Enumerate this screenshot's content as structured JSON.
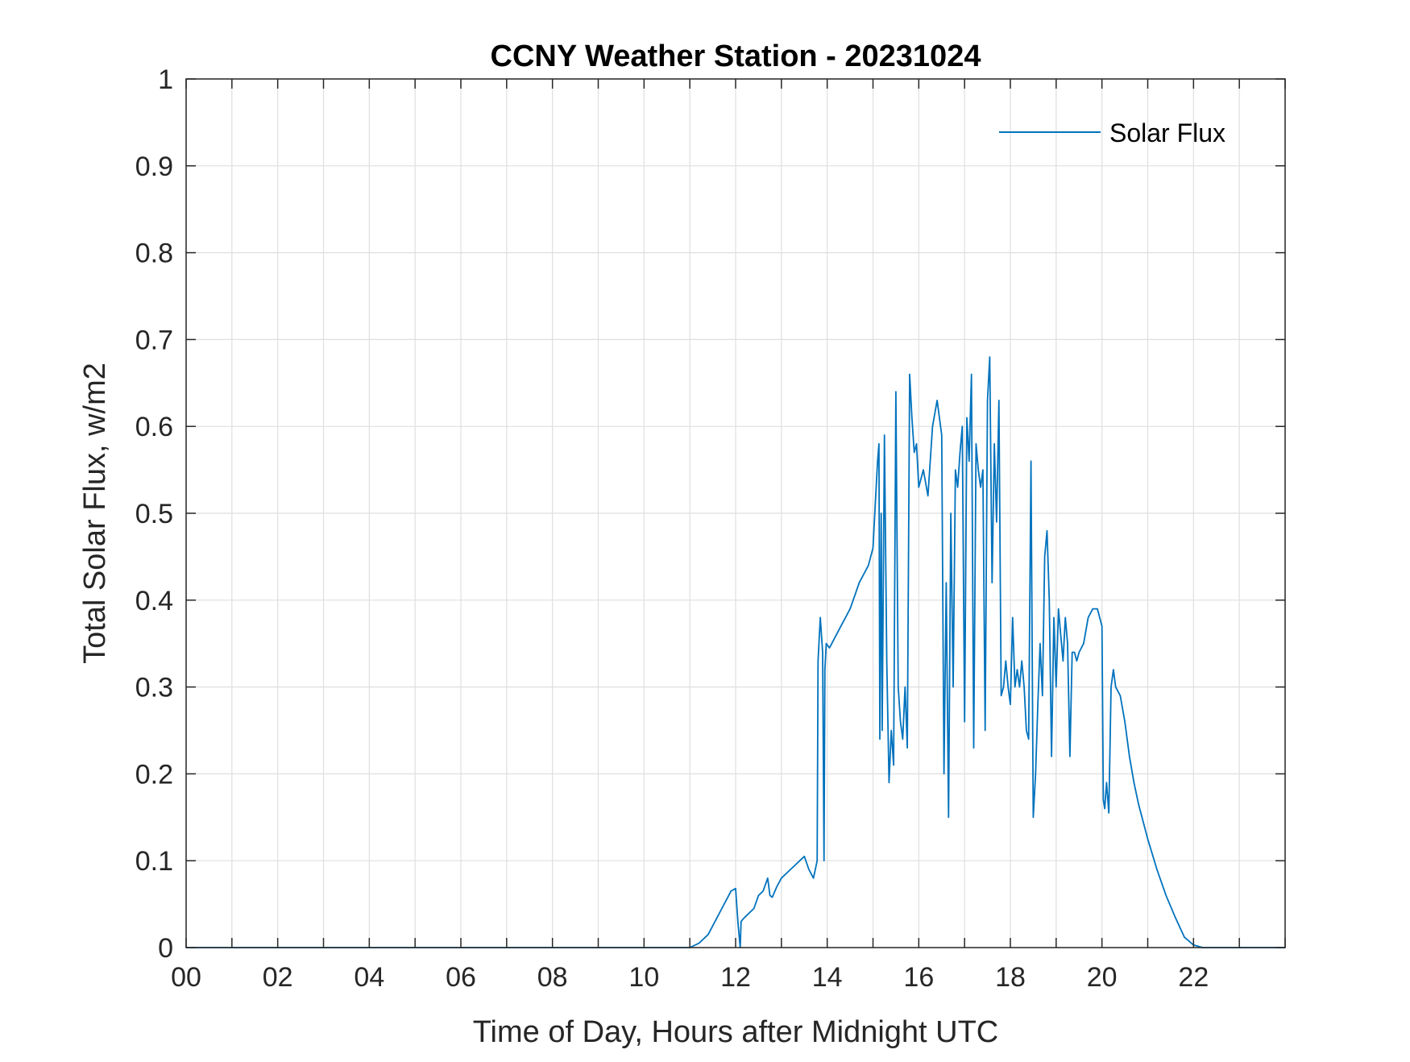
{
  "chart_data": {
    "type": "line",
    "title": "CCNY Weather Station - 20231024",
    "xlabel": "Time of Day, Hours after Midnight UTC",
    "ylabel": "Total Solar Flux, w/m2",
    "xlim": [
      0,
      24
    ],
    "ylim": [
      0,
      1
    ],
    "xticks": [
      0,
      2,
      4,
      6,
      8,
      10,
      12,
      14,
      16,
      18,
      20,
      22
    ],
    "xtick_labels": [
      "00",
      "02",
      "04",
      "06",
      "08",
      "10",
      "12",
      "14",
      "16",
      "18",
      "20",
      "22"
    ],
    "xgrid": [
      0,
      1,
      2,
      3,
      4,
      5,
      6,
      7,
      8,
      9,
      10,
      11,
      12,
      13,
      14,
      15,
      16,
      17,
      18,
      19,
      20,
      21,
      22,
      23,
      24
    ],
    "yticks": [
      0,
      0.1,
      0.2,
      0.3,
      0.4,
      0.5,
      0.6,
      0.7,
      0.8,
      0.9,
      1
    ],
    "ytick_labels": [
      "0",
      "0.1",
      "0.2",
      "0.3",
      "0.4",
      "0.5",
      "0.6",
      "0.7",
      "0.8",
      "0.9",
      "1"
    ],
    "grid": true,
    "legend_position": "top-right",
    "colors": {
      "series": "#0072BD",
      "axis": "#262626",
      "grid": "#dfdfdf"
    },
    "series": [
      {
        "name": "Solar Flux",
        "x": [
          0,
          11.0,
          11.2,
          11.4,
          11.55,
          11.7,
          11.8,
          11.9,
          12.0,
          12.05,
          12.1,
          12.12,
          12.15,
          12.2,
          12.4,
          12.5,
          12.6,
          12.7,
          12.75,
          12.8,
          12.9,
          13.0,
          13.1,
          13.2,
          13.3,
          13.4,
          13.5,
          13.6,
          13.65,
          13.7,
          13.78,
          13.8,
          13.85,
          13.9,
          13.93,
          13.95,
          13.98,
          14.05,
          14.1,
          14.2,
          14.3,
          14.4,
          14.5,
          14.6,
          14.7,
          14.8,
          14.9,
          15.0,
          15.05,
          15.1,
          15.13,
          15.15,
          15.18,
          15.2,
          15.25,
          15.3,
          15.35,
          15.4,
          15.45,
          15.5,
          15.55,
          15.6,
          15.65,
          15.7,
          15.75,
          15.8,
          15.85,
          15.9,
          15.95,
          16.0,
          16.1,
          16.2,
          16.3,
          16.4,
          16.5,
          16.55,
          16.6,
          16.65,
          16.7,
          16.75,
          16.8,
          16.85,
          16.9,
          16.95,
          17.0,
          17.05,
          17.1,
          17.15,
          17.2,
          17.25,
          17.3,
          17.35,
          17.4,
          17.45,
          17.5,
          17.55,
          17.6,
          17.65,
          17.7,
          17.75,
          17.8,
          17.85,
          17.9,
          17.95,
          18.0,
          18.05,
          18.1,
          18.15,
          18.2,
          18.25,
          18.3,
          18.35,
          18.4,
          18.45,
          18.5,
          18.55,
          18.6,
          18.65,
          18.7,
          18.75,
          18.8,
          18.85,
          18.9,
          18.95,
          19.0,
          19.05,
          19.1,
          19.15,
          19.2,
          19.25,
          19.3,
          19.35,
          19.4,
          19.45,
          19.5,
          19.6,
          19.7,
          19.8,
          19.9,
          20.0,
          20.03,
          20.06,
          20.1,
          20.15,
          20.2,
          20.25,
          20.3,
          20.4,
          20.5,
          20.6,
          20.7,
          20.8,
          20.9,
          21.0,
          21.2,
          21.4,
          21.6,
          21.8,
          22.0,
          22.2,
          22.4,
          22.6,
          24.0
        ],
        "y": [
          0,
          0,
          0.005,
          0.015,
          0.03,
          0.045,
          0.055,
          0.065,
          0.068,
          0.03,
          0.0,
          0.03,
          0.032,
          0.035,
          0.045,
          0.06,
          0.065,
          0.08,
          0.06,
          0.058,
          0.07,
          0.08,
          0.085,
          0.09,
          0.095,
          0.1,
          0.105,
          0.09,
          0.085,
          0.08,
          0.1,
          0.33,
          0.38,
          0.34,
          0.1,
          0.32,
          0.35,
          0.345,
          0.35,
          0.36,
          0.37,
          0.38,
          0.39,
          0.405,
          0.42,
          0.43,
          0.44,
          0.46,
          0.51,
          0.56,
          0.58,
          0.24,
          0.5,
          0.25,
          0.59,
          0.33,
          0.19,
          0.25,
          0.21,
          0.64,
          0.3,
          0.26,
          0.24,
          0.3,
          0.23,
          0.66,
          0.61,
          0.57,
          0.58,
          0.53,
          0.55,
          0.52,
          0.6,
          0.63,
          0.59,
          0.2,
          0.42,
          0.15,
          0.5,
          0.3,
          0.55,
          0.53,
          0.57,
          0.6,
          0.26,
          0.61,
          0.56,
          0.66,
          0.23,
          0.58,
          0.55,
          0.53,
          0.55,
          0.25,
          0.63,
          0.68,
          0.42,
          0.58,
          0.49,
          0.63,
          0.29,
          0.3,
          0.33,
          0.3,
          0.28,
          0.38,
          0.3,
          0.32,
          0.3,
          0.33,
          0.3,
          0.25,
          0.24,
          0.56,
          0.15,
          0.2,
          0.28,
          0.35,
          0.29,
          0.45,
          0.48,
          0.4,
          0.22,
          0.38,
          0.3,
          0.39,
          0.36,
          0.33,
          0.38,
          0.35,
          0.22,
          0.34,
          0.34,
          0.33,
          0.34,
          0.35,
          0.38,
          0.39,
          0.39,
          0.37,
          0.17,
          0.16,
          0.19,
          0.155,
          0.3,
          0.32,
          0.3,
          0.29,
          0.26,
          0.22,
          0.19,
          0.165,
          0.145,
          0.125,
          0.09,
          0.06,
          0.035,
          0.012,
          0.003,
          0,
          0,
          0,
          0
        ]
      }
    ]
  }
}
